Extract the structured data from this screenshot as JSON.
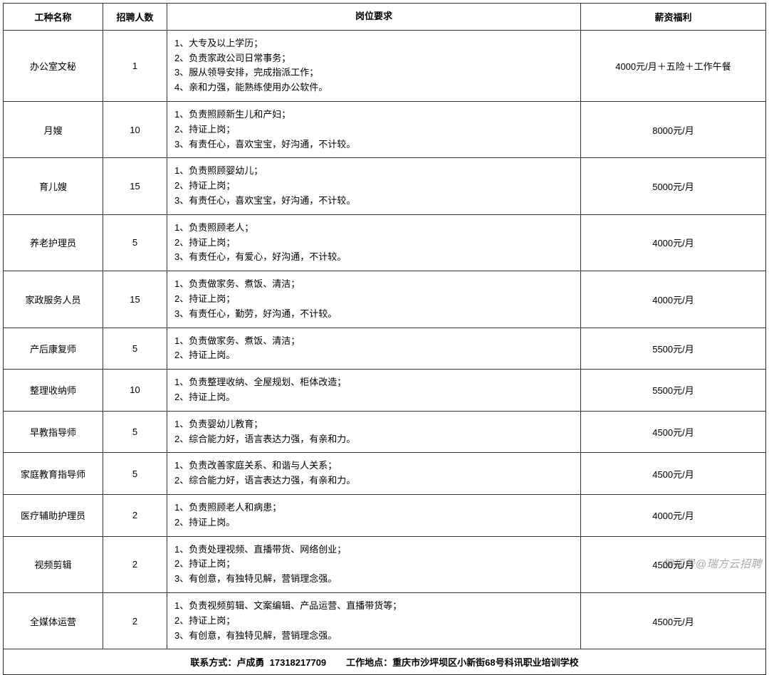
{
  "columns": {
    "name": "工种名称",
    "count": "招聘人数",
    "requirements": "岗位要求",
    "salary": "薪资福利"
  },
  "column_widths": {
    "name": 140,
    "count": 90,
    "salary": 260
  },
  "font_size_pt": 10,
  "border_color": "#333333",
  "background_color": "#ffffff",
  "text_color": "#000000",
  "rows": [
    {
      "name": "办公室文秘",
      "count": "1",
      "requirements": [
        "1、大专及以上学历；",
        "2、负责家政公司日常事务；",
        "3、服从领导安排，完成指派工作；",
        "4、亲和力强，能熟练使用办公软件。"
      ],
      "salary": "4000元/月＋五险＋工作午餐"
    },
    {
      "name": "月嫂",
      "count": "10",
      "requirements": [
        "1、负责照顾新生儿和产妇；",
        "2、持证上岗；",
        "3、有责任心，喜欢宝宝，好沟通，不计较。"
      ],
      "salary": "8000元/月"
    },
    {
      "name": "育儿嫂",
      "count": "15",
      "requirements": [
        "1、负责照顾婴幼儿；",
        "2、持证上岗；",
        "3、有责任心，喜欢宝宝，好沟通，不计较。"
      ],
      "salary": "5000元/月"
    },
    {
      "name": "养老护理员",
      "count": "5",
      "requirements": [
        "1、负责照顾老人；",
        "2、持证上岗；",
        "3、有责任心，有爱心，好沟通，不计较。"
      ],
      "salary": "4000元/月"
    },
    {
      "name": "家政服务人员",
      "count": "15",
      "requirements": [
        "1、负责做家务、煮饭、清洁；",
        "2、持证上岗；",
        "3、有责任心，勤劳，好沟通，不计较。"
      ],
      "salary": "4000元/月"
    },
    {
      "name": "产后康复师",
      "count": "5",
      "requirements": [
        "1、负责做家务、煮饭、清洁；",
        "2、持证上岗。"
      ],
      "salary": "5500元/月"
    },
    {
      "name": "整理收纳师",
      "count": "10",
      "requirements": [
        "1、负责整理收纳、全屋规划、柜体改造；",
        "2、持证上岗。"
      ],
      "salary": "5500元/月"
    },
    {
      "name": "早教指导师",
      "count": "5",
      "requirements": [
        "1、负责婴幼儿教育；",
        "2、综合能力好，语言表达力强，有亲和力。"
      ],
      "salary": "4500元/月"
    },
    {
      "name": "家庭教育指导师",
      "count": "5",
      "requirements": [
        "1、负责改善家庭关系、和谐与人关系；",
        "2、综合能力好，语言表达力强，有亲和力。"
      ],
      "salary": "4500元/月"
    },
    {
      "name": "医疗辅助护理员",
      "count": "2",
      "requirements": [
        "1、负责照顾老人和病患；",
        "2、持证上岗。"
      ],
      "salary": "4000元/月"
    },
    {
      "name": "视频剪辑",
      "count": "2",
      "requirements": [
        "1、负责处理视频、直播带货、网络创业；",
        "2、持证上岗；",
        "3、有创意，有独特见解，营销理念强。"
      ],
      "salary": "4500元/月"
    },
    {
      "name": "全媒体运营",
      "count": "2",
      "requirements": [
        "1、负责视频剪辑、文案编辑、产品运营、直播带货等；",
        "2、持证上岗；",
        "3、有创意，有独特见解，营销理念强。"
      ],
      "salary": "4500元/月"
    }
  ],
  "footer": {
    "contact_label": "联系方式：",
    "contact_name": "卢成勇",
    "contact_phone": "17318217709",
    "address_label": "工作地点：",
    "address": "重庆市沙坪坝区小新街68号科讯职业培训学校"
  },
  "watermark": "搜狐号@瑞方云招聘"
}
